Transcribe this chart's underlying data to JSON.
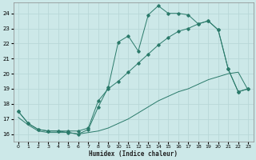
{
  "xlabel": "Humidex (Indice chaleur)",
  "xlim": [
    -0.5,
    23.5
  ],
  "ylim": [
    15.5,
    24.7
  ],
  "xticks": [
    0,
    1,
    2,
    3,
    4,
    5,
    6,
    7,
    8,
    9,
    10,
    11,
    12,
    13,
    14,
    15,
    16,
    17,
    18,
    19,
    20,
    21,
    22,
    23
  ],
  "yticks": [
    16,
    17,
    18,
    19,
    20,
    21,
    22,
    23,
    24
  ],
  "bg_color": "#cce8e8",
  "grid_color": "#b8d8d8",
  "line_color": "#2a7a6a",
  "series1_x": [
    0,
    1,
    2,
    3,
    4,
    5,
    6,
    7,
    8,
    9,
    10,
    11,
    12,
    13,
    14,
    15,
    16,
    17,
    18,
    19,
    20,
    21,
    22,
    23
  ],
  "series1_y": [
    17.5,
    16.7,
    16.3,
    16.2,
    16.2,
    16.1,
    16.0,
    16.3,
    17.8,
    19.1,
    22.1,
    22.5,
    21.5,
    23.9,
    24.5,
    24.0,
    24.0,
    23.9,
    23.3,
    23.5,
    22.9,
    20.3,
    18.8,
    19.0
  ],
  "series2_x": [
    0,
    1,
    2,
    3,
    4,
    5,
    6,
    7,
    8,
    9,
    10,
    11,
    12,
    13,
    14,
    15,
    16,
    17,
    18,
    19,
    20,
    21,
    22,
    23
  ],
  "series2_y": [
    17.5,
    16.7,
    16.3,
    16.2,
    16.2,
    16.2,
    16.2,
    16.4,
    18.2,
    19.0,
    19.5,
    20.1,
    20.7,
    21.3,
    21.9,
    22.4,
    22.8,
    23.0,
    23.3,
    23.5,
    22.9,
    20.3,
    18.8,
    19.0
  ],
  "series3_x": [
    0,
    1,
    2,
    3,
    4,
    5,
    6,
    7,
    8,
    9,
    10,
    11,
    12,
    13,
    14,
    15,
    16,
    17,
    18,
    19,
    20,
    21,
    22,
    23
  ],
  "series3_y": [
    17.1,
    16.6,
    16.2,
    16.1,
    16.1,
    16.1,
    16.0,
    16.1,
    16.2,
    16.4,
    16.7,
    17.0,
    17.4,
    17.8,
    18.2,
    18.5,
    18.8,
    19.0,
    19.3,
    19.6,
    19.8,
    20.0,
    20.1,
    18.9
  ]
}
